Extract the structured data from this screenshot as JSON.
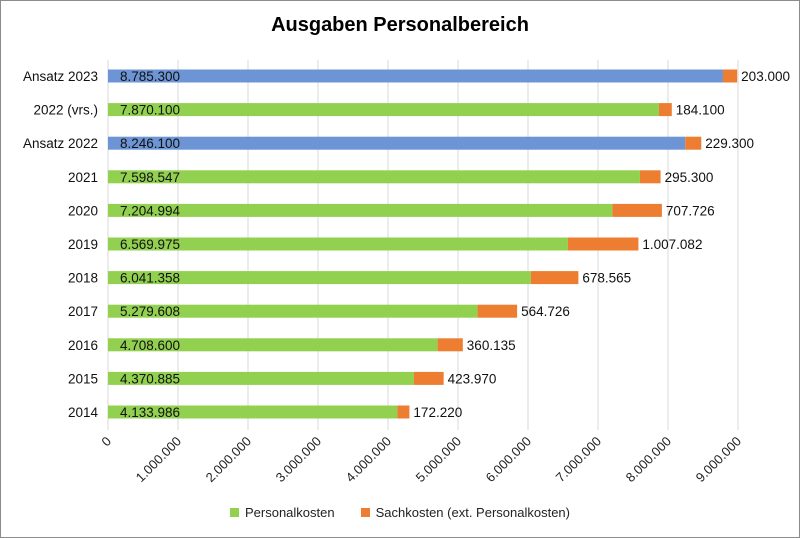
{
  "chart_data": {
    "type": "bar",
    "orientation": "horizontal",
    "stacked": true,
    "title": "Ausgaben Personalbereich",
    "categories": [
      "Ansatz 2023",
      "2022 (vrs.)",
      "Ansatz 2022",
      "2021",
      "2020",
      "2019",
      "2018",
      "2017",
      "2016",
      "2015",
      "2014"
    ],
    "series": [
      {
        "name": "Personalkosten",
        "color": "#92d050",
        "highlight_color": "#6d95d5",
        "highlight_categories": [
          "Ansatz 2023",
          "Ansatz 2022"
        ],
        "values": [
          8785300,
          7870100,
          8246100,
          7598547,
          7204994,
          6569975,
          6041358,
          5279608,
          4708600,
          4370885,
          4133986
        ],
        "labels": [
          "8.785.300",
          "7.870.100",
          "8.246.100",
          "7.598.547",
          "7.204.994",
          "6.569.975",
          "6.041.358",
          "5.279.608",
          "4.708.600",
          "4.370.885",
          "4.133.986"
        ]
      },
      {
        "name": "Sachkosten (ext. Personalkosten)",
        "color": "#ed7d31",
        "values": [
          203000,
          184100,
          229300,
          295300,
          707726,
          1007082,
          678565,
          564726,
          360135,
          423970,
          172220
        ],
        "labels": [
          "203.000",
          "184.100",
          "229.300",
          "295.300",
          "707.726",
          "1.007.082",
          "678.565",
          "564.726",
          "360.135",
          "423.970",
          "172.220"
        ]
      }
    ],
    "xlim": [
      0,
      9000000
    ],
    "xticks": [
      0,
      1000000,
      2000000,
      3000000,
      4000000,
      5000000,
      6000000,
      7000000,
      8000000,
      9000000
    ],
    "xtick_labels": [
      "0",
      "1.000.000",
      "2.000.000",
      "3.000.000",
      "4.000.000",
      "5.000.000",
      "6.000.000",
      "7.000.000",
      "8.000.000",
      "9.000.000"
    ],
    "grid": true,
    "legend_position": "bottom"
  }
}
